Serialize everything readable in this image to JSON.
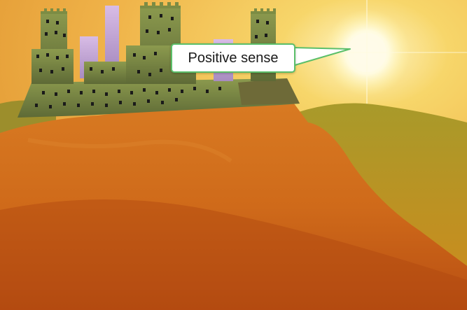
{
  "callout": {
    "text": "Positive sense"
  },
  "colors": {
    "sky_top": "#f2c25a",
    "sky_glow": "#fff6c8",
    "sun": "#fffbe0",
    "hill_far": "#b8a02a",
    "hill_near": "#d0701a",
    "hill_dark": "#a8420f",
    "castle_wall": "#7a8a45",
    "castle_tower_pink": "#c8a8d8",
    "window": "#1a1a1a",
    "callout_border": "#5bbf6a"
  }
}
